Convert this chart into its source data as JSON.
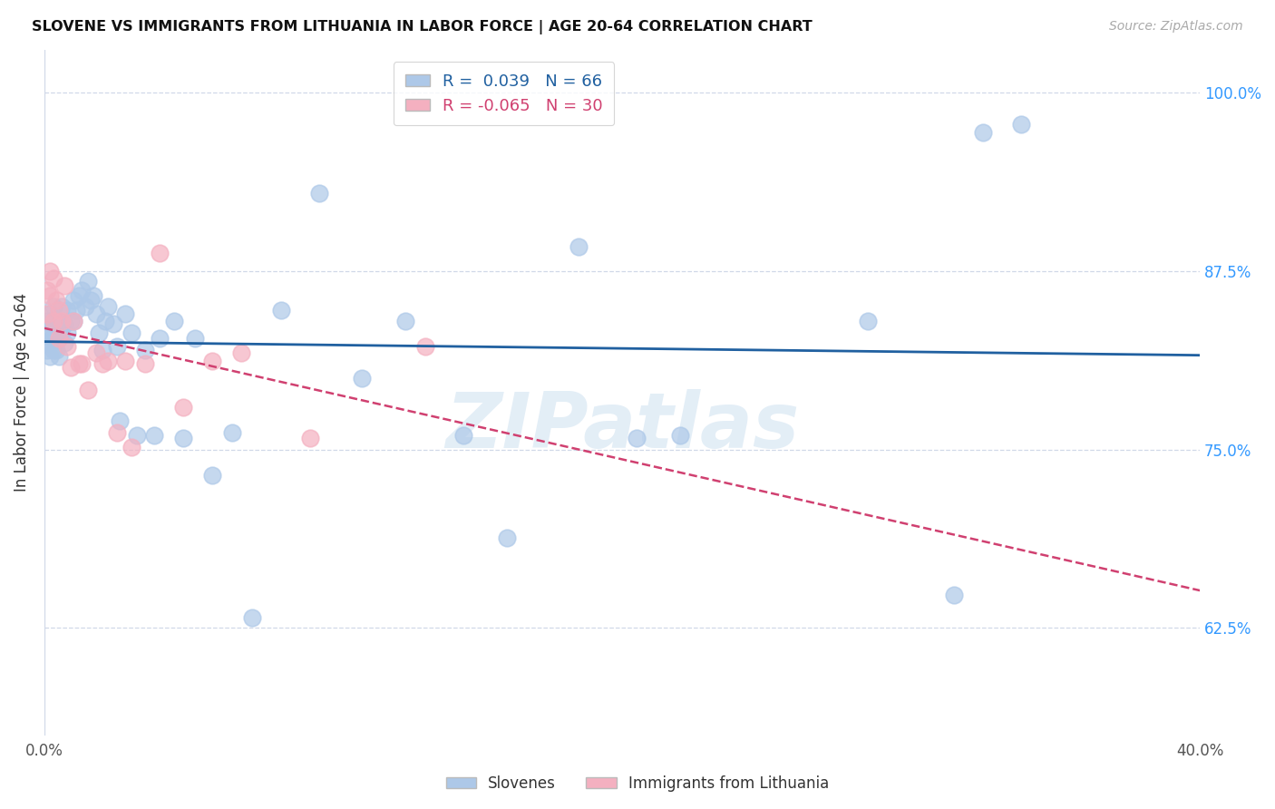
{
  "title": "SLOVENE VS IMMIGRANTS FROM LITHUANIA IN LABOR FORCE | AGE 20-64 CORRELATION CHART",
  "source": "Source: ZipAtlas.com",
  "ylabel": "In Labor Force | Age 20-64",
  "xlim": [
    0.0,
    0.4
  ],
  "ylim": [
    0.55,
    1.03
  ],
  "x_ticks": [
    0.0,
    0.05,
    0.1,
    0.15,
    0.2,
    0.25,
    0.3,
    0.35,
    0.4
  ],
  "x_tick_labels": [
    "0.0%",
    "",
    "",
    "",
    "",
    "",
    "",
    "",
    "40.0%"
  ],
  "y_ticks": [
    0.625,
    0.75,
    0.875,
    1.0
  ],
  "y_tick_labels": [
    "62.5%",
    "75.0%",
    "87.5%",
    "100.0%"
  ],
  "blue_R": 0.039,
  "blue_N": 66,
  "pink_R": -0.065,
  "pink_N": 30,
  "blue_color": "#adc8e8",
  "blue_line_color": "#2060a0",
  "pink_color": "#f4b0c0",
  "pink_line_color": "#d04070",
  "background_color": "#ffffff",
  "watermark": "ZIPatlas",
  "blue_points_x": [
    0.001,
    0.001,
    0.001,
    0.002,
    0.002,
    0.002,
    0.002,
    0.003,
    0.003,
    0.003,
    0.003,
    0.004,
    0.004,
    0.004,
    0.005,
    0.005,
    0.005,
    0.006,
    0.006,
    0.007,
    0.007,
    0.008,
    0.008,
    0.009,
    0.01,
    0.01,
    0.011,
    0.012,
    0.013,
    0.014,
    0.015,
    0.016,
    0.017,
    0.018,
    0.019,
    0.02,
    0.021,
    0.022,
    0.024,
    0.025,
    0.026,
    0.028,
    0.03,
    0.032,
    0.035,
    0.038,
    0.04,
    0.045,
    0.048,
    0.052,
    0.058,
    0.065,
    0.072,
    0.082,
    0.095,
    0.11,
    0.125,
    0.145,
    0.16,
    0.185,
    0.205,
    0.22,
    0.285,
    0.315,
    0.325,
    0.338
  ],
  "blue_points_y": [
    0.82,
    0.83,
    0.84,
    0.815,
    0.825,
    0.835,
    0.845,
    0.82,
    0.83,
    0.84,
    0.85,
    0.82,
    0.83,
    0.84,
    0.815,
    0.828,
    0.84,
    0.835,
    0.85,
    0.825,
    0.838,
    0.832,
    0.848,
    0.84,
    0.84,
    0.855,
    0.848,
    0.858,
    0.862,
    0.85,
    0.868,
    0.855,
    0.858,
    0.845,
    0.832,
    0.82,
    0.84,
    0.85,
    0.838,
    0.822,
    0.77,
    0.845,
    0.832,
    0.76,
    0.82,
    0.76,
    0.828,
    0.84,
    0.758,
    0.828,
    0.732,
    0.762,
    0.632,
    0.848,
    0.93,
    0.8,
    0.84,
    0.76,
    0.688,
    0.892,
    0.758,
    0.76,
    0.84,
    0.648,
    0.972,
    0.978
  ],
  "pink_points_x": [
    0.001,
    0.001,
    0.002,
    0.002,
    0.003,
    0.003,
    0.004,
    0.005,
    0.005,
    0.006,
    0.007,
    0.008,
    0.009,
    0.01,
    0.012,
    0.013,
    0.015,
    0.018,
    0.02,
    0.022,
    0.025,
    0.028,
    0.03,
    0.035,
    0.04,
    0.048,
    0.058,
    0.068,
    0.092,
    0.132
  ],
  "pink_points_y": [
    0.845,
    0.862,
    0.858,
    0.875,
    0.84,
    0.87,
    0.855,
    0.828,
    0.848,
    0.84,
    0.865,
    0.822,
    0.808,
    0.84,
    0.81,
    0.81,
    0.792,
    0.818,
    0.81,
    0.812,
    0.762,
    0.812,
    0.752,
    0.81,
    0.888,
    0.78,
    0.812,
    0.818,
    0.758,
    0.822
  ]
}
